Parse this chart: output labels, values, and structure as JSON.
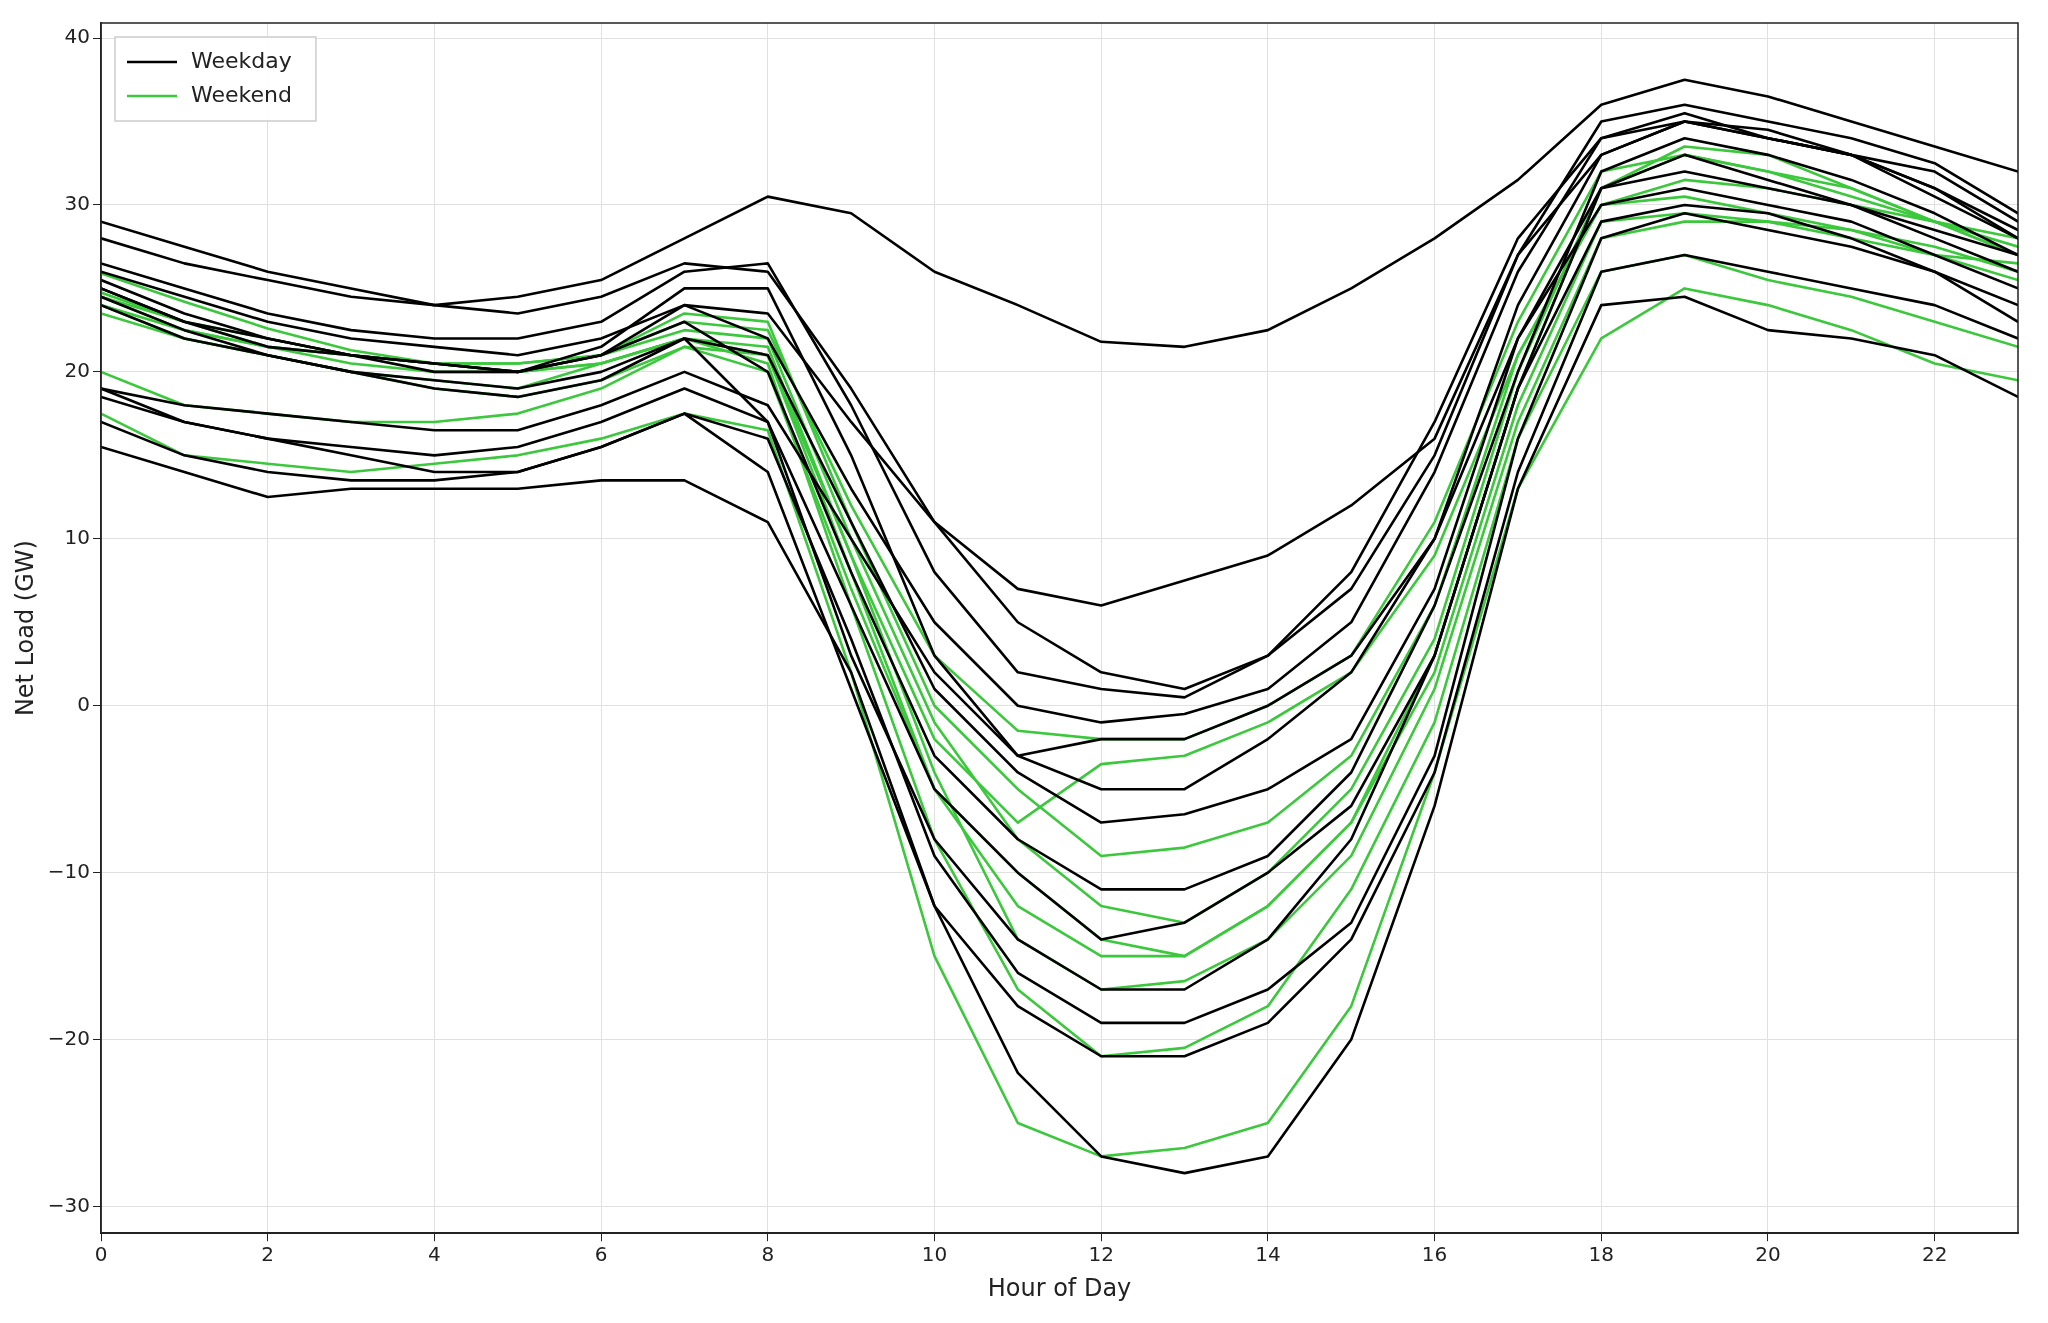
{
  "chart_data": {
    "type": "line",
    "xlabel": "Hour of Day",
    "ylabel": "Net Load (GW)",
    "x": [
      0,
      1,
      2,
      3,
      4,
      5,
      6,
      7,
      8,
      9,
      10,
      11,
      12,
      13,
      14,
      15,
      16,
      17,
      18,
      19,
      20,
      21,
      22,
      23
    ],
    "xlim": [
      0,
      23
    ],
    "xticks": [
      0,
      2,
      4,
      6,
      8,
      10,
      12,
      14,
      16,
      18,
      20,
      22
    ],
    "ylim": [
      -31.6,
      40.9
    ],
    "yticks": [
      -30,
      -20,
      -10,
      0,
      10,
      20,
      30,
      40
    ],
    "grid": true,
    "legend": "top left",
    "marker": "none",
    "line_style": "solid",
    "series": [
      {
        "name": "Weekday",
        "color": "#000000",
        "values": [
          29,
          27.5,
          26,
          25,
          24,
          24.5,
          25.5,
          28,
          30.5,
          29.5,
          26,
          24,
          21.8,
          21.5,
          22.5,
          25,
          28,
          31.5,
          36,
          37.5,
          36.5,
          35,
          33.5,
          32
        ]
      },
      {
        "color": "#000000",
        "values": [
          28,
          26.5,
          25.5,
          24.5,
          24,
          23.5,
          24.5,
          26.5,
          26,
          19,
          11,
          5,
          2,
          1,
          3,
          8,
          17,
          28,
          34,
          35,
          34,
          33,
          31,
          28.5
        ]
      },
      {
        "color": "#000000",
        "values": [
          26,
          24.5,
          23,
          22,
          21.5,
          21,
          22,
          24,
          22,
          13,
          5,
          0,
          -1,
          -0.5,
          1,
          5,
          14,
          26,
          34,
          35.5,
          34,
          33,
          30.5,
          28
        ]
      },
      {
        "color": "#000000",
        "values": [
          25,
          23,
          21.5,
          21,
          20,
          20,
          21,
          23,
          20,
          8,
          -3,
          -8,
          -11,
          -11,
          -9,
          -4,
          6,
          20,
          32,
          34,
          33,
          31.5,
          29.5,
          27
        ]
      },
      {
        "color": "#000000",
        "values": [
          24,
          22,
          21,
          20,
          19.5,
          19,
          20,
          22,
          17,
          3,
          -8,
          -14,
          -17,
          -17,
          -14,
          -8,
          3,
          19,
          31,
          33,
          31.5,
          30,
          28,
          26
        ]
      },
      {
        "color": "#000000",
        "values": [
          19,
          18,
          17.5,
          17,
          16.5,
          16.5,
          18,
          20,
          18,
          10,
          2,
          -3,
          -5,
          -5,
          -2,
          2,
          10,
          22,
          30,
          31,
          30,
          29,
          27,
          25
        ]
      },
      {
        "color": "#000000",
        "values": [
          18.5,
          17,
          16,
          15.5,
          15,
          15.5,
          17,
          19,
          17,
          6,
          -5,
          -10,
          -14,
          -13,
          -10,
          -6,
          3,
          19,
          29,
          30,
          29.5,
          28,
          26,
          24
        ]
      },
      {
        "color": "#000000",
        "values": [
          17,
          15,
          14,
          13.5,
          13.5,
          14,
          15.5,
          17.5,
          14,
          1,
          -12,
          -18,
          -21,
          -21,
          -19,
          -14,
          -4,
          14,
          26,
          27,
          26,
          25,
          24,
          22
        ]
      },
      {
        "color": "#000000",
        "values": [
          15.5,
          14,
          12.5,
          13,
          13,
          13,
          13.5,
          13.5,
          11,
          2,
          -12,
          -22,
          -27,
          -28,
          -27,
          -20,
          -6,
          13,
          24,
          24.5,
          22.5,
          22,
          21,
          18.5
        ]
      },
      {
        "color": "#000000",
        "values": [
          25.5,
          23.5,
          22,
          21,
          20.5,
          20,
          21,
          24,
          23.5,
          17,
          11,
          7,
          6,
          7.5,
          9,
          12,
          16,
          27,
          33,
          35,
          34.5,
          33,
          32,
          29
        ]
      },
      {
        "color": "#000000",
        "values": [
          24.5,
          22.5,
          21,
          20,
          19,
          18.5,
          19.5,
          22,
          21,
          11,
          1,
          -4,
          -7,
          -6.5,
          -5,
          -2,
          7,
          22,
          31,
          32,
          31,
          30,
          28.5,
          27
        ]
      },
      {
        "color": "#000000",
        "values": [
          19,
          17,
          16,
          15,
          14,
          14,
          15.5,
          17.5,
          16,
          4,
          -9,
          -16,
          -19,
          -19,
          -17,
          -13,
          -3,
          16,
          28,
          29.5,
          28.5,
          27.5,
          26,
          23
        ]
      },
      {
        "color": "#000000",
        "values": [
          25,
          23,
          22,
          21,
          20.5,
          20,
          21.5,
          25,
          25,
          15,
          3,
          -3,
          -2,
          -2,
          0,
          3,
          10,
          24,
          33,
          35,
          34,
          33,
          31,
          28
        ]
      },
      {
        "color": "#000000",
        "values": [
          26.5,
          25,
          23.5,
          22.5,
          22,
          22,
          23,
          26,
          26.5,
          18,
          8,
          2,
          1,
          0.5,
          3,
          7,
          15,
          27,
          35,
          36,
          35,
          34,
          32.5,
          29.5
        ]
      },
      {
        "name": "Weekend",
        "color": "#3cc83c",
        "values": [
          25.9,
          24.2,
          22.6,
          21.3,
          20.5,
          20.5,
          21,
          22.5,
          22,
          10,
          -1,
          -8,
          -12,
          -13,
          -10,
          -5,
          4,
          20,
          31,
          33.5,
          33,
          31,
          29,
          27
        ]
      },
      {
        "color": "#3cc83c",
        "values": [
          24.75,
          23,
          21.5,
          20.5,
          20,
          20,
          20.5,
          22,
          21,
          8,
          -5,
          -12,
          -15,
          -15,
          -12,
          -7,
          3,
          19,
          31,
          33,
          32,
          31,
          29,
          27
        ]
      },
      {
        "color": "#3cc83c",
        "values": [
          24,
          22.5,
          21.5,
          21,
          20.5,
          20.5,
          21,
          23,
          22.5,
          12,
          3,
          -1.5,
          -2,
          -2,
          0,
          3,
          11,
          23,
          32,
          33,
          32,
          30.5,
          29,
          27.5
        ]
      },
      {
        "color": "#3cc83c",
        "values": [
          20,
          18,
          17.5,
          17,
          17,
          17.5,
          19,
          21.5,
          20,
          7,
          -5,
          -10,
          -14,
          -15,
          -12,
          -7,
          2,
          18,
          29,
          29.5,
          29,
          28.5,
          27.5,
          26
        ]
      },
      {
        "color": "#3cc83c",
        "values": [
          17.5,
          15,
          14.5,
          14,
          14.5,
          15,
          16,
          17.5,
          16.5,
          2,
          -15,
          -25,
          -27,
          -26.5,
          -25,
          -18,
          -4,
          13,
          22,
          25,
          24,
          22.5,
          20.5,
          19.5
        ]
      },
      {
        "color": "#3cc83c",
        "values": [
          24.5,
          23,
          22,
          21,
          20.5,
          20,
          21,
          23.5,
          23,
          11,
          0,
          -5,
          -9,
          -8.5,
          -7,
          -3,
          6,
          21,
          30,
          31.5,
          31,
          30,
          29,
          28
        ]
      },
      {
        "color": "#3cc83c",
        "values": [
          23.5,
          22,
          21,
          20,
          19.5,
          19,
          20.5,
          22,
          21.5,
          9,
          -4,
          -14,
          -17,
          -16.5,
          -14,
          -9,
          1,
          17,
          28,
          29,
          29,
          28,
          27,
          26.5
        ]
      },
      {
        "color": "#3cc83c",
        "values": [
          24,
          22,
          21,
          20,
          19,
          18.5,
          19.5,
          21.5,
          21,
          9,
          -2,
          -7,
          -3.5,
          -3,
          -1,
          2,
          9,
          21,
          30,
          30.5,
          29.5,
          28.5,
          27,
          25.5
        ]
      },
      {
        "color": "#3cc83c",
        "values": [
          24.5,
          22.5,
          21.5,
          21,
          20.5,
          20,
          20.5,
          22,
          20.5,
          6,
          -8,
          -17,
          -21,
          -20.5,
          -18,
          -11,
          -1,
          16,
          26,
          27,
          25.5,
          24.5,
          23,
          21.5
        ]
      }
    ]
  }
}
